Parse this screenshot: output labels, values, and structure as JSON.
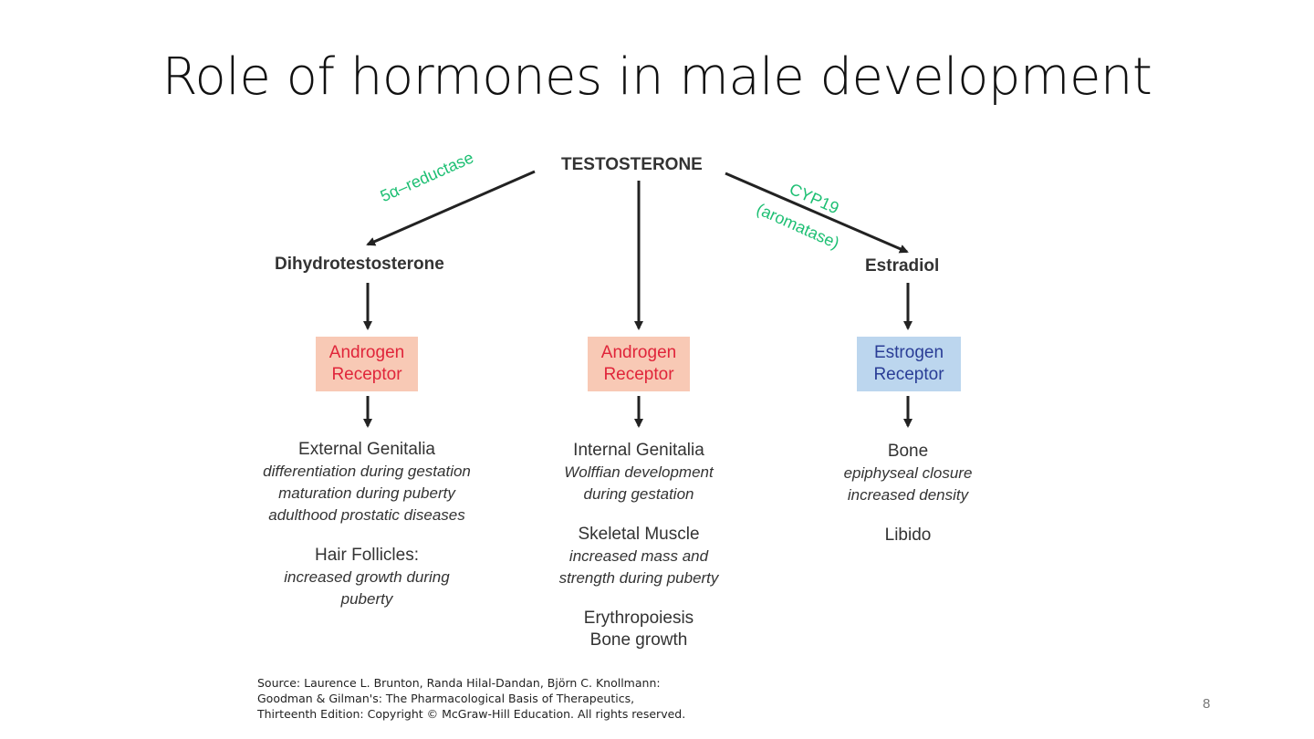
{
  "slide": {
    "title": "Role of hormones in male development",
    "page_number": "8",
    "source_lines": [
      "Source: Laurence L. Brunton, Randa Hilal-Dandan, Björn C. Knollmann:",
      "Goodman & Gilman's: The Pharmacological Basis of Therapeutics,",
      "Thirteenth Edition: Copyright © McGraw-Hill Education. All rights reserved."
    ]
  },
  "diagram": {
    "root": "TESTOSTERONE",
    "left_node": "Dihydrotestosterone",
    "right_node": "Estradiol",
    "enzyme_left": "5α–reductase",
    "enzyme_right_1": "CYP19",
    "enzyme_right_2": "(aromatase)",
    "receptors": {
      "left": {
        "line1": "Androgen",
        "line2": "Receptor"
      },
      "center": {
        "line1": "Androgen",
        "line2": "Receptor"
      },
      "right": {
        "line1": "Estrogen",
        "line2": "Receptor"
      }
    },
    "effects": {
      "left": {
        "head1": "External Genitalia",
        "it1": "differentiation during gestation",
        "it2": "maturation during puberty",
        "it3": "adulthood prostatic diseases",
        "head2": "Hair Follicles:",
        "it4": "increased growth during",
        "it5": "puberty"
      },
      "center": {
        "head1": "Internal Genitalia",
        "it1": "Wolffian development",
        "it2": "during gestation",
        "head2": "Skeletal Muscle",
        "it3": "increased mass and",
        "it4": "strength during puberty",
        "head3": "Erythropoiesis",
        "head4": "Bone growth"
      },
      "right": {
        "head1": "Bone",
        "it1": "epiphyseal closure",
        "it2": "increased density",
        "head2": "Libido"
      }
    },
    "colors": {
      "enzyme": "#1dbf73",
      "androgen_bg": "#f8c9b5",
      "androgen_text": "#e0253a",
      "estrogen_bg": "#bcd6ee",
      "estrogen_text": "#2a3d96"
    }
  }
}
